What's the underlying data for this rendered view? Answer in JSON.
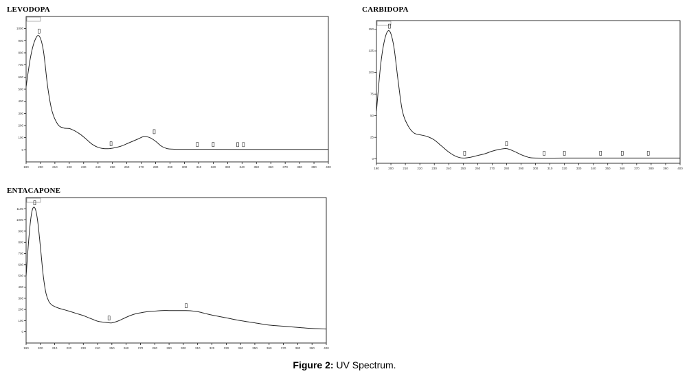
{
  "figure": {
    "caption_label": "Figure 2:",
    "caption_text": " UV Spectrum."
  },
  "chart_data": [
    {
      "type": "line",
      "title": "LEVODOPA",
      "xlabel": "",
      "ylabel": "",
      "xlim": [
        190,
        400
      ],
      "ylim": [
        -100,
        1100
      ],
      "x_ticks": [
        190,
        200,
        210,
        220,
        230,
        240,
        250,
        260,
        270,
        280,
        290,
        300,
        310,
        320,
        330,
        340,
        350,
        360,
        370,
        380,
        390,
        400
      ],
      "y_ticks": [
        0,
        100,
        200,
        300,
        400,
        500,
        600,
        700,
        800,
        900,
        1000
      ],
      "series": [
        {
          "x": [
            190,
            193,
            196,
            199,
            202,
            205,
            208,
            212,
            216,
            220,
            224,
            228,
            232,
            236,
            240,
            244,
            248,
            252,
            256,
            260,
            264,
            268,
            272,
            276,
            280,
            284,
            288,
            292,
            296,
            300,
            320,
            340,
            360,
            380,
            400
          ],
          "values": [
            520,
            760,
            900,
            940,
            820,
            520,
            320,
            210,
            180,
            175,
            155,
            125,
            85,
            45,
            20,
            10,
            10,
            18,
            30,
            50,
            70,
            90,
            110,
            100,
            70,
            30,
            10,
            5,
            4,
            4,
            4,
            3,
            3,
            3,
            3
          ]
        }
      ],
      "peak_labels": [
        {
          "x": 199,
          "y": 940
        },
        {
          "x": 249,
          "y": 10
        },
        {
          "x": 279,
          "y": 110
        },
        {
          "x": 309,
          "y": 4
        },
        {
          "x": 320,
          "y": 4
        },
        {
          "x": 337,
          "y": 3
        },
        {
          "x": 341,
          "y": 3
        }
      ]
    },
    {
      "type": "line",
      "title": "CARBIDOPA",
      "xlabel": "",
      "ylabel": "",
      "xlim": [
        190,
        400
      ],
      "ylim": [
        -5,
        160
      ],
      "x_ticks": [
        190,
        200,
        210,
        220,
        230,
        240,
        250,
        260,
        270,
        280,
        290,
        300,
        310,
        320,
        330,
        340,
        350,
        360,
        370,
        380,
        390,
        400
      ],
      "y_ticks": [
        0,
        25,
        50,
        75,
        100,
        125,
        150
      ],
      "series": [
        {
          "x": [
            190,
            193,
            196,
            199,
            202,
            205,
            208,
            212,
            216,
            220,
            225,
            230,
            235,
            240,
            245,
            250,
            255,
            260,
            265,
            270,
            275,
            280,
            285,
            290,
            295,
            300,
            320,
            340,
            360,
            380,
            400
          ],
          "values": [
            55,
            110,
            140,
            148,
            130,
            90,
            55,
            38,
            30,
            28,
            26,
            22,
            15,
            8,
            3,
            1,
            2,
            4,
            6,
            9,
            11,
            12,
            9,
            5,
            2,
            1,
            1,
            1,
            1,
            1,
            1
          ]
        }
      ],
      "peak_labels": [
        {
          "x": 199,
          "y": 148
        },
        {
          "x": 251,
          "y": 1
        },
        {
          "x": 280,
          "y": 12
        },
        {
          "x": 306,
          "y": 1
        },
        {
          "x": 320,
          "y": 1
        },
        {
          "x": 345,
          "y": 1
        },
        {
          "x": 360,
          "y": 1
        },
        {
          "x": 378,
          "y": 1
        }
      ]
    },
    {
      "type": "line",
      "title": "ENTACAPONE",
      "xlabel": "",
      "ylabel": "",
      "xlim": [
        190,
        400
      ],
      "ylim": [
        -100,
        1200
      ],
      "x_ticks": [
        190,
        200,
        210,
        220,
        230,
        240,
        250,
        260,
        270,
        280,
        290,
        300,
        310,
        320,
        330,
        340,
        350,
        360,
        370,
        380,
        390,
        400
      ],
      "y_ticks": [
        0,
        100,
        200,
        300,
        400,
        500,
        600,
        700,
        800,
        900,
        1000,
        1100
      ],
      "series": [
        {
          "x": [
            190,
            192,
            194,
            196,
            198,
            200,
            202,
            204,
            206,
            208,
            212,
            216,
            220,
            225,
            230,
            235,
            240,
            245,
            250,
            255,
            260,
            265,
            270,
            275,
            280,
            285,
            290,
            295,
            300,
            305,
            310,
            315,
            320,
            330,
            340,
            350,
            360,
            370,
            380,
            390,
            400
          ],
          "values": [
            500,
            850,
            1070,
            1110,
            1000,
            760,
            500,
            340,
            270,
            240,
            215,
            200,
            185,
            165,
            145,
            120,
            95,
            85,
            80,
            100,
            130,
            155,
            170,
            180,
            185,
            190,
            190,
            190,
            190,
            188,
            180,
            165,
            150,
            125,
            100,
            80,
            60,
            50,
            40,
            30,
            25
          ]
        }
      ],
      "peak_labels": [
        {
          "x": 196,
          "y": 1110
        },
        {
          "x": 248,
          "y": 80
        },
        {
          "x": 302,
          "y": 190
        }
      ]
    }
  ],
  "style": {
    "axis_color": "#000000",
    "line_color": "#222222",
    "caption_color": "#000000"
  }
}
